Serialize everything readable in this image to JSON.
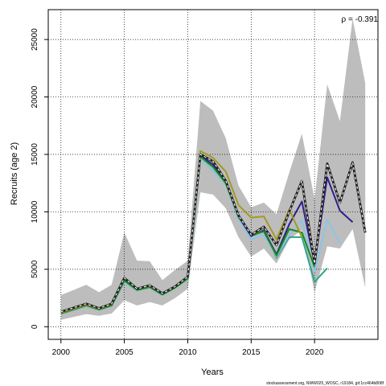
{
  "chart_data": {
    "type": "line",
    "title": "",
    "xlabel": "Years",
    "ylabel": "Recruits (age 2)",
    "xlim": [
      1999,
      2025
    ],
    "ylim": [
      -1100,
      27600
    ],
    "xticks": [
      2000,
      2005,
      2010,
      2015,
      2020
    ],
    "yticks": [
      0,
      5000,
      10000,
      15000,
      20000,
      25000
    ],
    "grid": true,
    "annotation": "ρ = -0.391",
    "credit": "stockassessment.org, NWW025_WOSC, r19184, git:1cc464b808f",
    "band": {
      "x": [
        2000,
        2001,
        2002,
        2003,
        2004,
        2005,
        2006,
        2007,
        2008,
        2009,
        2010,
        2011,
        2012,
        2013,
        2014,
        2015,
        2016,
        2017,
        2018,
        2019,
        2020,
        2021,
        2022,
        2023,
        2024
      ],
      "lower": [
        600,
        850,
        1100,
        950,
        1150,
        2300,
        1850,
        2150,
        1850,
        2500,
        3300,
        11700,
        11500,
        10300,
        7800,
        6100,
        6800,
        5500,
        7600,
        8400,
        3000,
        7000,
        6800,
        8500,
        3400
      ],
      "upper": [
        2750,
        3200,
        3650,
        3000,
        3650,
        8200,
        5750,
        5700,
        4050,
        4950,
        5750,
        19650,
        18800,
        16400,
        12300,
        10400,
        10800,
        9800,
        13400,
        16800,
        11100,
        21100,
        17900,
        26800,
        21200
      ]
    },
    "series": [
      {
        "color": "#222222",
        "dashed": true,
        "x": [
          2000,
          2001,
          2002,
          2003,
          2004,
          2005,
          2006,
          2007,
          2008,
          2009,
          2010,
          2011,
          2012,
          2013,
          2014,
          2015,
          2016,
          2017,
          2018,
          2019,
          2020,
          2021,
          2022,
          2023,
          2024
        ],
        "values": [
          1300,
          1650,
          2000,
          1600,
          2000,
          4250,
          3300,
          3600,
          2900,
          3500,
          4350,
          15000,
          14400,
          12700,
          9700,
          8000,
          8700,
          7100,
          10000,
          12700,
          5500,
          14200,
          10800,
          14300,
          8200
        ]
      },
      {
        "color": "#2ca58d",
        "dashed": false,
        "x": [
          2000,
          2001,
          2002,
          2003,
          2004,
          2005,
          2006,
          2007,
          2008,
          2009,
          2010,
          2011,
          2012,
          2013,
          2014,
          2015,
          2016,
          2017,
          2018,
          2019,
          2020,
          2021
        ],
        "values": [
          1100,
          1450,
          1800,
          1450,
          1800,
          3900,
          3150,
          3400,
          2750,
          3400,
          4100,
          14700,
          13600,
          12400,
          9400,
          7900,
          8300,
          6000,
          7800,
          7800,
          3900,
          5100
        ]
      },
      {
        "color": "#8bc4e6",
        "dashed": false,
        "x": [
          2000,
          2001,
          2002,
          2003,
          2004,
          2005,
          2006,
          2007,
          2008,
          2009,
          2010,
          2011,
          2012,
          2013,
          2014,
          2015,
          2016,
          2017,
          2018,
          2019,
          2020,
          2021,
          2022
        ],
        "values": [
          1100,
          1450,
          1800,
          1450,
          1800,
          3900,
          3150,
          3400,
          2750,
          3400,
          4100,
          14700,
          13600,
          12400,
          9400,
          7600,
          8000,
          6100,
          8000,
          9300,
          4800,
          9300,
          7300
        ]
      },
      {
        "color": "#2e1f8c",
        "dashed": false,
        "x": [
          2000,
          2001,
          2002,
          2003,
          2004,
          2005,
          2006,
          2007,
          2008,
          2009,
          2010,
          2011,
          2012,
          2013,
          2014,
          2015,
          2016,
          2017,
          2018,
          2019,
          2020,
          2021,
          2022,
          2023
        ],
        "values": [
          1250,
          1600,
          1950,
          1550,
          1950,
          4150,
          3250,
          3500,
          2850,
          3450,
          4250,
          14900,
          14100,
          12600,
          9600,
          7900,
          8400,
          6300,
          8900,
          10900,
          5500,
          13000,
          10100,
          9100
        ]
      },
      {
        "color": "#1a8a1a",
        "dashed": false,
        "x": [
          2000,
          2001,
          2002,
          2003,
          2004,
          2005,
          2006,
          2007,
          2008,
          2009,
          2010,
          2011,
          2012,
          2013,
          2014,
          2015,
          2016,
          2017,
          2018,
          2019,
          2020
        ],
        "values": [
          1150,
          1500,
          1850,
          1500,
          1850,
          4000,
          3200,
          3450,
          2800,
          3400,
          4200,
          14800,
          13900,
          12500,
          9600,
          8000,
          8300,
          6200,
          8500,
          8200,
          5200
        ]
      },
      {
        "color": "#a39a22",
        "dashed": false,
        "x": [
          2000,
          2001,
          2002,
          2003,
          2004,
          2005,
          2006,
          2007,
          2008,
          2009,
          2010,
          2011,
          2012,
          2013,
          2014,
          2015,
          2016,
          2017,
          2018,
          2019
        ],
        "values": [
          1200,
          1550,
          1900,
          1550,
          1950,
          4250,
          3300,
          3550,
          2900,
          3500,
          4300,
          15300,
          14700,
          13500,
          10600,
          9500,
          9600,
          7600,
          10200,
          7800
        ]
      }
    ]
  }
}
